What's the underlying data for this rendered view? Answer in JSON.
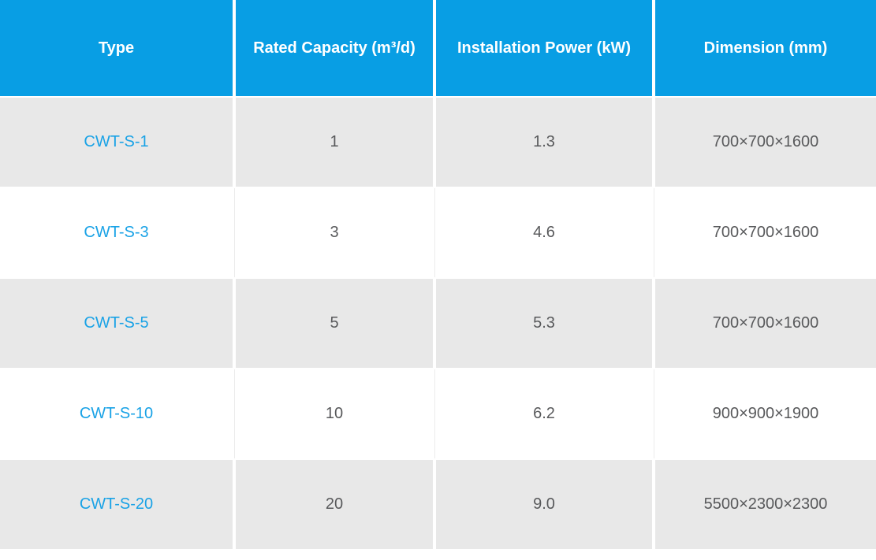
{
  "chart_data": {
    "type": "table",
    "title": "Product specification table",
    "columns": [
      "Type",
      "Rated Capacity (m³/d)",
      "Installation Power (kW)",
      "Dimension (mm)"
    ],
    "rows": [
      [
        "CWT-S-1",
        1,
        1.3,
        "700×700×1600"
      ],
      [
        "CWT-S-3",
        3,
        4.6,
        "700×700×1600"
      ],
      [
        "CWT-S-5",
        5,
        5.3,
        "700×700×1600"
      ],
      [
        "CWT-S-10",
        10,
        6.2,
        "900×900×1900"
      ],
      [
        "CWT-S-20",
        20,
        9.0,
        "5500×2300×2300"
      ]
    ]
  },
  "table": {
    "columns": [
      {
        "label": "Type"
      },
      {
        "label": "Rated Capacity (m³/d)"
      },
      {
        "label": "Installation Power (kW)"
      },
      {
        "label": "Dimension (mm)"
      }
    ],
    "rows": [
      {
        "type": "CWT-S-1",
        "capacity": "1",
        "power": "1.3",
        "dimension": "700×700×1600"
      },
      {
        "type": "CWT-S-3",
        "capacity": "3",
        "power": "4.6",
        "dimension": "700×700×1600"
      },
      {
        "type": "CWT-S-5",
        "capacity": "5",
        "power": "5.3",
        "dimension": "700×700×1600"
      },
      {
        "type": "CWT-S-10",
        "capacity": "10",
        "power": "6.2",
        "dimension": "900×900×1900"
      },
      {
        "type": "CWT-S-20",
        "capacity": "20",
        "power": "9.0",
        "dimension": "5500×2300×2300"
      }
    ],
    "colors": {
      "header_bg": "#089EE4",
      "header_text": "#FFFFFF",
      "link_text": "#19A2E6",
      "alt_row_bg": "#E8E8E8",
      "cell_text": "#58595B",
      "cell_gap": "#FFFFFF",
      "white_row_rule": "#EBEBEB"
    }
  }
}
